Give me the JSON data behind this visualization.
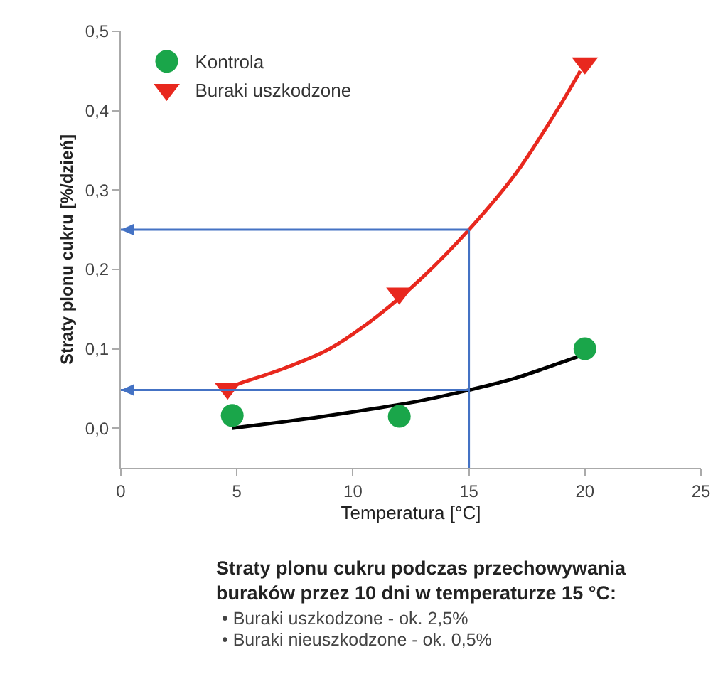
{
  "chart_data": {
    "type": "scatter",
    "xlabel": "Temperatura [°C]",
    "ylabel": "Straty plonu cukru [%/dzień]",
    "xlim": [
      0,
      25
    ],
    "xticks": [
      0,
      5,
      10,
      15,
      20,
      25
    ],
    "ylim": [
      -0.05,
      0.5
    ],
    "yticks": [
      {
        "value": 0,
        "label": "0,0"
      },
      {
        "value": 0.1,
        "label": "0,1"
      },
      {
        "value": 0.2,
        "label": "0,2"
      },
      {
        "value": 0.3,
        "label": "0,3"
      },
      {
        "value": 0.4,
        "label": "0,4"
      },
      {
        "value": 0.5,
        "label": "0,5"
      }
    ],
    "grid": false,
    "legend": "top left",
    "series": [
      {
        "type": "line",
        "color": "#000000",
        "line_style": "solid",
        "marker": "none",
        "x": [
          4.8,
          7,
          9,
          11,
          13,
          15,
          17,
          19,
          19.7
        ],
        "values": [
          0.0,
          0.008,
          0.016,
          0.025,
          0.035,
          0.048,
          0.063,
          0.083,
          0.09
        ]
      },
      {
        "type": "line",
        "color": "#e8281e",
        "line_style": "solid",
        "marker": "none",
        "x": [
          4.6,
          5,
          7,
          9,
          11,
          13,
          15,
          17,
          19,
          19.8
        ],
        "values": [
          0.05,
          0.055,
          0.075,
          0.1,
          0.14,
          0.19,
          0.25,
          0.32,
          0.41,
          0.45
        ]
      },
      {
        "name": "Kontrola",
        "color": "#1aa64a",
        "marker": "circle",
        "x": [
          4.8,
          12,
          20
        ],
        "values": [
          0.016,
          0.015,
          0.1
        ]
      },
      {
        "name": "Buraki uszkodzone",
        "color": "#e8281e",
        "marker": "triangle",
        "x": [
          4.6,
          12,
          20
        ],
        "values": [
          0.05,
          0.17,
          0.46
        ]
      }
    ],
    "ref_lines": [
      {
        "axis": "x",
        "value": 15,
        "color": "#4472c4"
      },
      {
        "axis": "y",
        "value": 0.25,
        "color": "#4472c4"
      },
      {
        "axis": "y",
        "value": 0.048,
        "color": "#4472c4"
      }
    ],
    "annotations": [
      "Straty plonu cukru podczas przechowywania buraków przez 10 dni w temperaturze 15 °C:",
      "• Buraki uszkodzone - ok. 2,5%",
      "• Buraki nieuszkodzone - ok. 0,5%"
    ]
  }
}
